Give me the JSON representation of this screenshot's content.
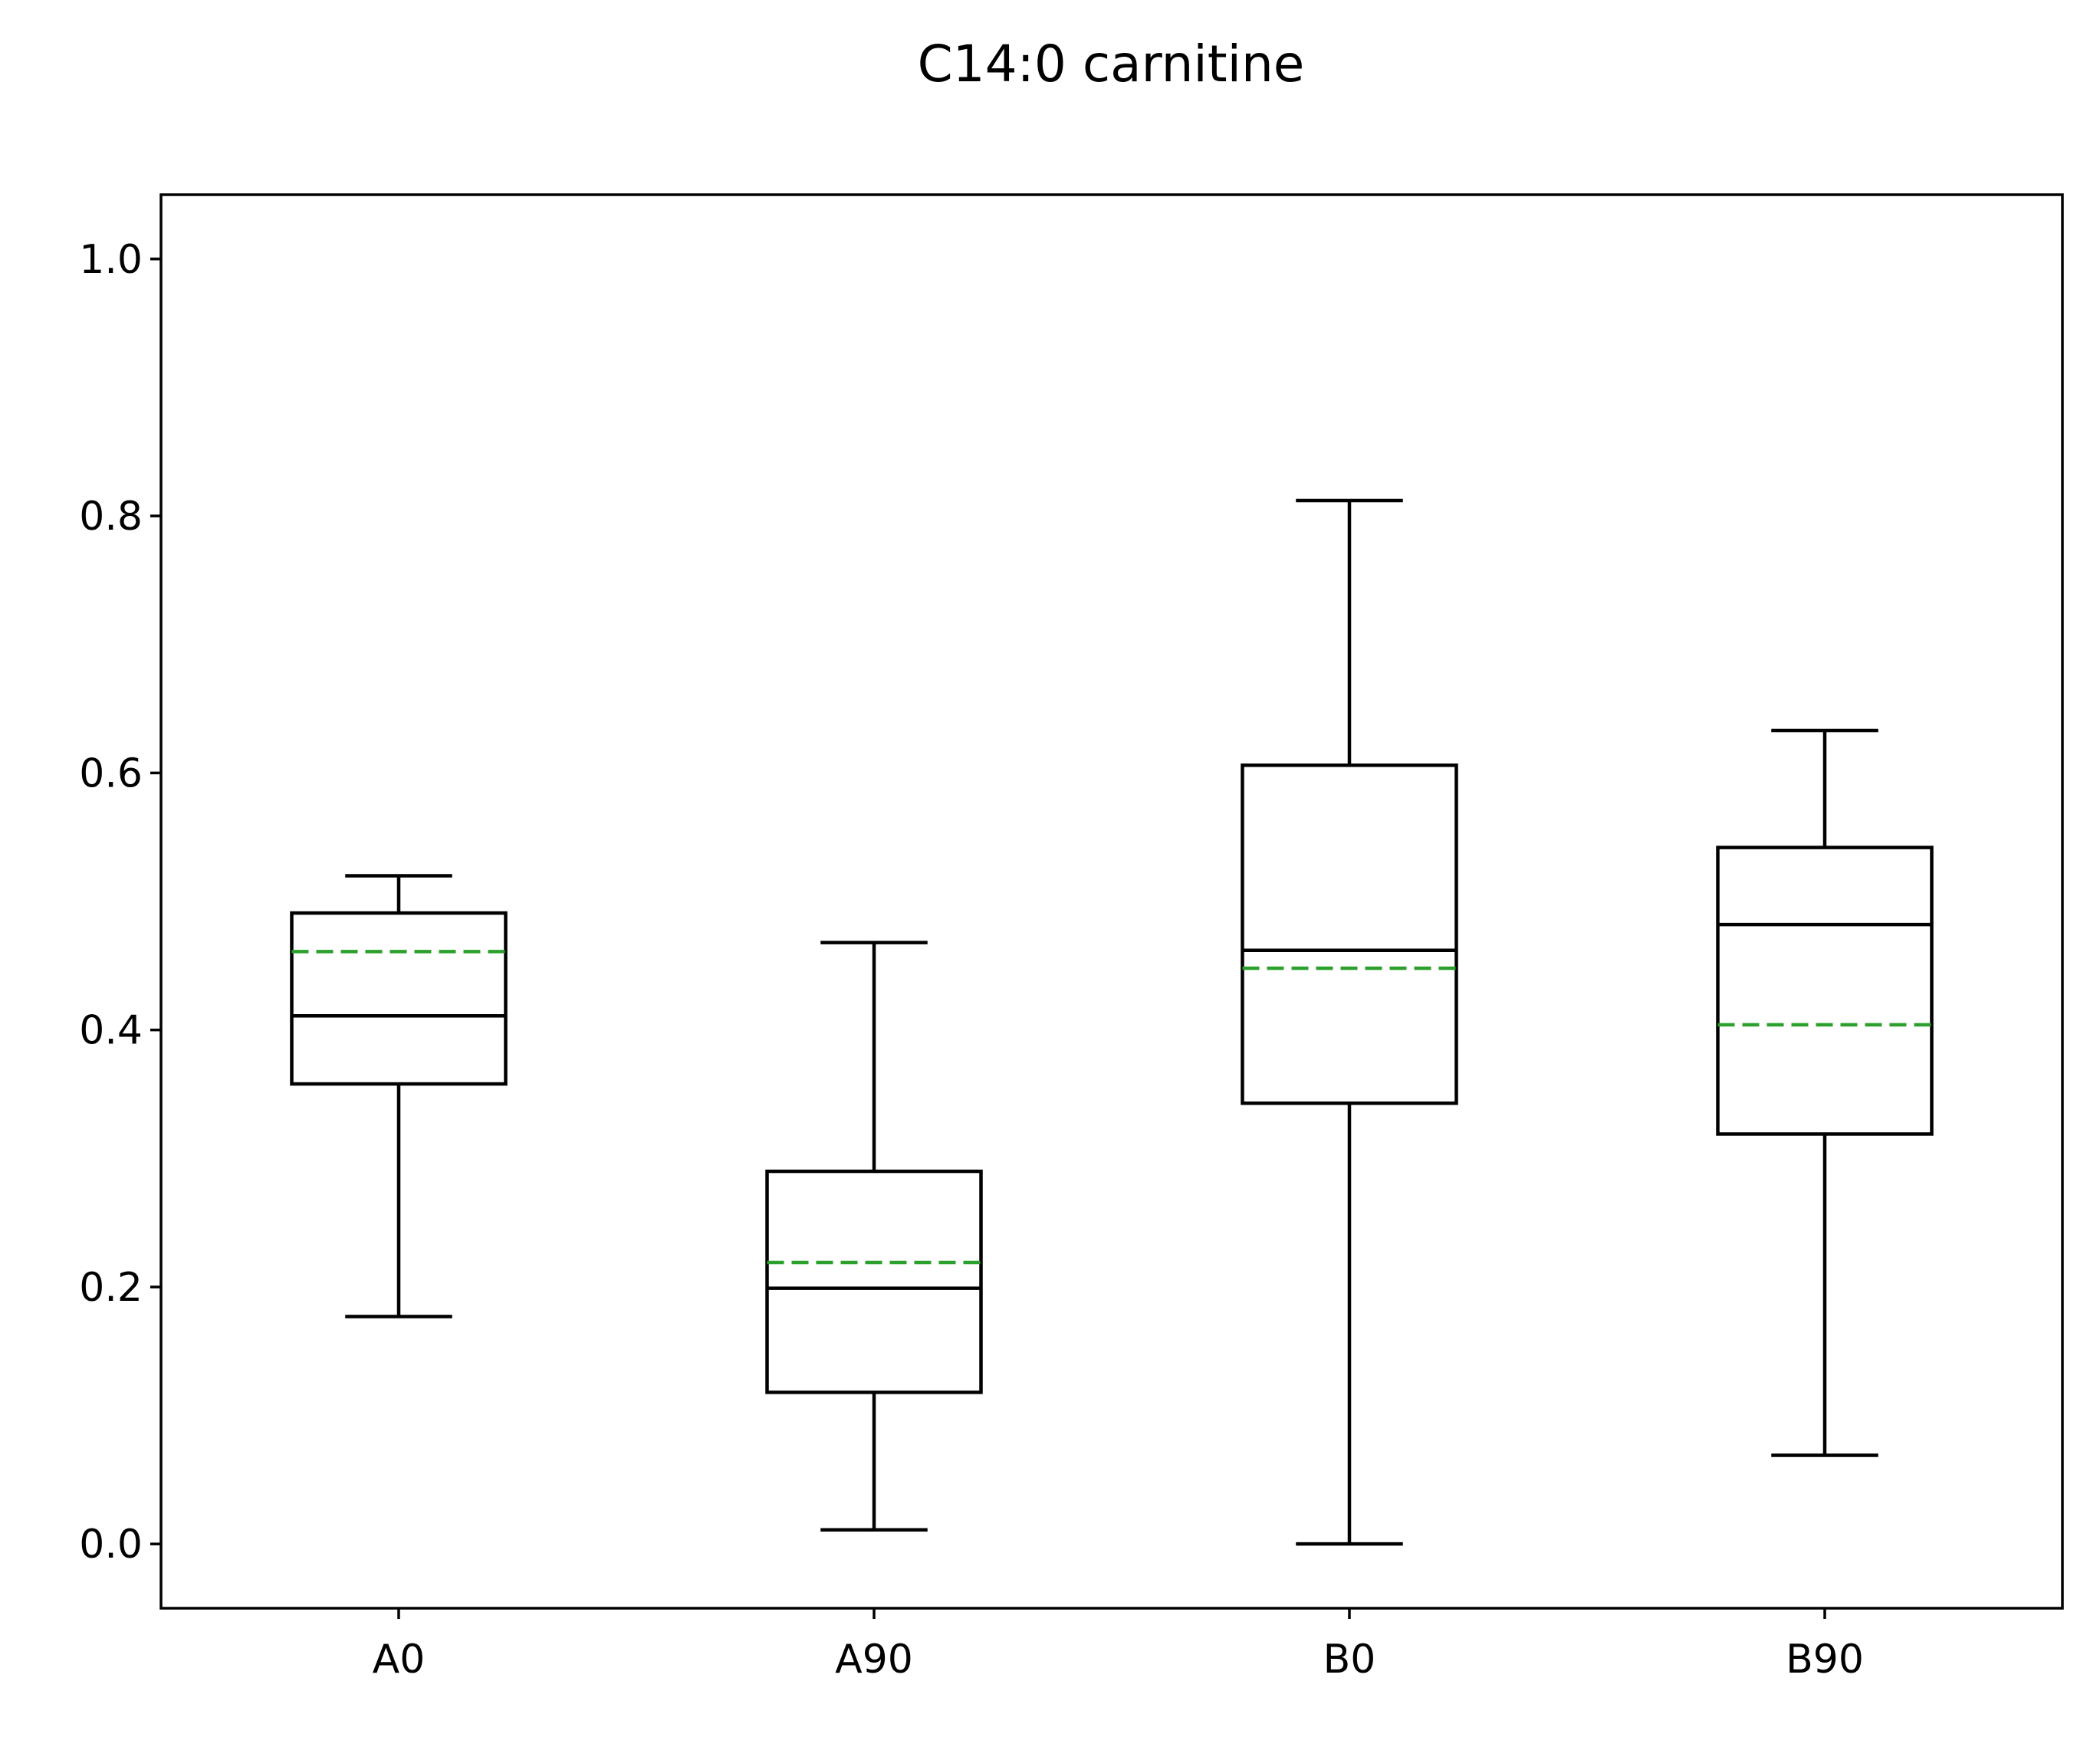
{
  "chart_data": {
    "type": "box",
    "title": "C14:0 carnitine",
    "xlabel": "",
    "ylabel": "",
    "ylim": [
      -0.05,
      1.05
    ],
    "yticks": [
      0.0,
      0.2,
      0.4,
      0.6,
      0.8,
      1.0
    ],
    "ytick_labels": [
      "0.0",
      "0.2",
      "0.4",
      "0.6",
      "0.8",
      "1.0"
    ],
    "categories": [
      "A0",
      "A90",
      "B0",
      "B90"
    ],
    "mean_line_color": "#2ca02c",
    "box_color": "#000000",
    "boxes": [
      {
        "label": "A0",
        "whisker_low": 0.177,
        "q1": 0.358,
        "median": 0.411,
        "q3": 0.491,
        "whisker_high": 0.52,
        "mean": 0.461
      },
      {
        "label": "A90",
        "whisker_low": 0.011,
        "q1": 0.118,
        "median": 0.199,
        "q3": 0.29,
        "whisker_high": 0.468,
        "mean": 0.219
      },
      {
        "label": "B0",
        "whisker_low": 0.0,
        "q1": 0.343,
        "median": 0.462,
        "q3": 0.606,
        "whisker_high": 0.812,
        "mean": 0.448
      },
      {
        "label": "B90",
        "whisker_low": 0.069,
        "q1": 0.319,
        "median": 0.482,
        "q3": 0.542,
        "whisker_high": 0.633,
        "mean": 0.404
      }
    ]
  }
}
